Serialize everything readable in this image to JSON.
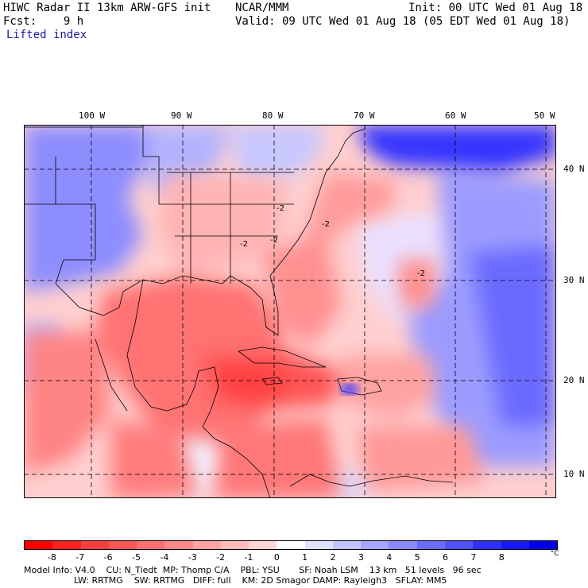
{
  "header": {
    "line1_left": "HIWC Radar II 13km ARW-GFS init",
    "line1_mid": "NCAR/MMM",
    "line1_right": "Init: 00 UTC Wed 01 Aug 18",
    "line2_left": "Fcst:    9 h",
    "line2_right": "Valid: 09 UTC Wed 01 Aug 18 (05 EDT Wed 01 Aug 18)",
    "field": "Lifted index"
  },
  "lon_labels": [
    "100 W",
    "90 W",
    "80 W",
    "70 W",
    "60 W",
    "50 W"
  ],
  "lat_labels": [
    "40 N",
    "30 N",
    "20 N",
    "10 N"
  ],
  "contour_labels": [
    "-2",
    "-2",
    "-2",
    "-2",
    "-2"
  ],
  "colorbar": {
    "colors": [
      "#ff0000",
      "#ff2020",
      "#ff3d3d",
      "#ff5555",
      "#ff6f6f",
      "#ff8888",
      "#ffa3a3",
      "#ffbbbb",
      "#ffd6d6",
      "#ffffff",
      "#e0e0ff",
      "#c4c4ff",
      "#a6a6ff",
      "#8a8aff",
      "#6b6bff",
      "#5050ff",
      "#3030ff",
      "#1818ff",
      "#0000ee"
    ],
    "ticks": [
      "-8",
      "-7",
      "-6",
      "-5",
      "-4",
      "-3",
      "-2",
      "-1",
      "0",
      "1",
      "2",
      "3",
      "4",
      "5",
      "6",
      "7",
      "8"
    ],
    "unit": "°C"
  },
  "footer": {
    "line1": "Model Info: V4.0    CU: N_Tiedt  MP: Thomp C/A    PBL: YSU       SF: Noah LSM    13 km   51 levels   96 sec",
    "line2": "                  LW: RRTMG    SW: RRTMG   DIFF: full    KM: 2D Smagor DAMP: Rayleigh3   SFLAY: MM5"
  }
}
